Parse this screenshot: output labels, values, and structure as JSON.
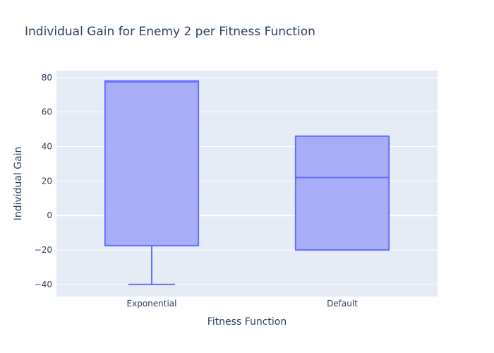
{
  "chart_data": {
    "type": "box",
    "title": "Individual Gain for Enemy 2 per Fitness Function",
    "xlabel": "Fitness Function",
    "ylabel": "Individual Gain",
    "categories": [
      "Exponential",
      "Default"
    ],
    "boxes": [
      {
        "category": "Exponential",
        "min": -40,
        "q1": -17.5,
        "median": 77.5,
        "q3": 78,
        "max": 78
      },
      {
        "category": "Default",
        "min": -20,
        "q1": -20,
        "median": 22,
        "q3": 46,
        "max": 46
      }
    ],
    "ylim": [
      -47,
      84
    ],
    "yticks": [
      -40,
      -20,
      0,
      20,
      40,
      60,
      80
    ],
    "ytick_labels": [
      "−40",
      "−20",
      "0",
      "20",
      "40",
      "60",
      "80"
    ],
    "grid": true,
    "colors": {
      "plot_bg": "#e5ecf6",
      "grid": "#ffffff",
      "box_fill": "#a3abf7",
      "box_line": "#636efa",
      "text": "#2a3f5f"
    }
  }
}
